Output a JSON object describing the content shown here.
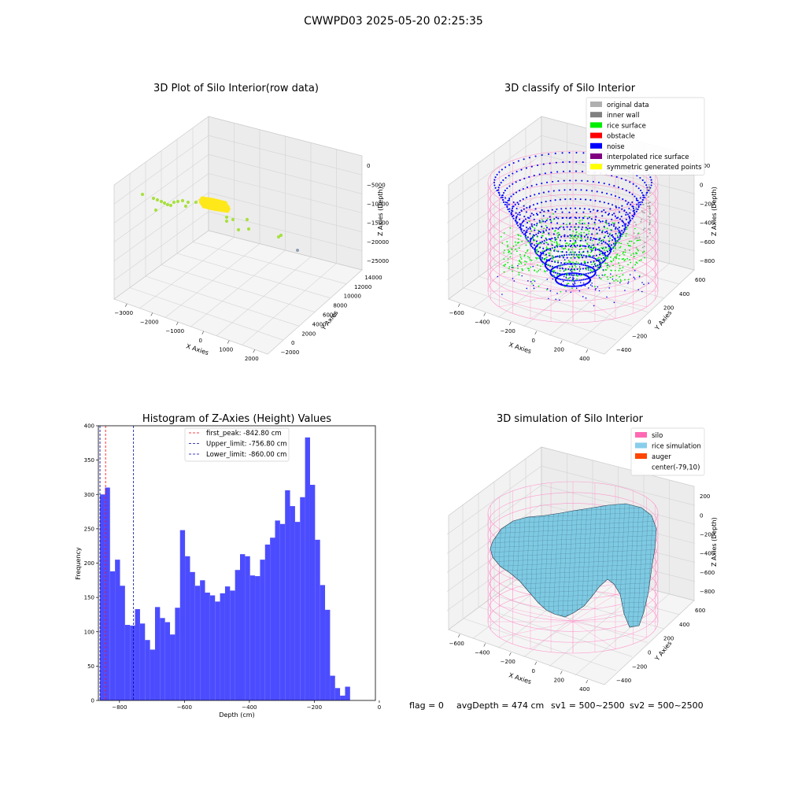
{
  "figure": {
    "title": "CWWPD03 2025-05-20 02:25:35",
    "footer": {
      "flag": "flag = 0",
      "avg": "avgDepth = 474 cm",
      "sv1": "sv1 = 500~2500",
      "sv2": "sv2 = 500~2500"
    }
  },
  "colors": {
    "hist_bar": "#4c4cff",
    "rice_point": "#a8e040",
    "symmetric_point": "#ffe81a",
    "raw_outlier": "#8fa0b0",
    "silo_wire": "#ff80c0",
    "rice_sim": "#7ecae3",
    "noise": "#0000ff",
    "rice_surface": "#00ee00",
    "first_peak_line": "#ff0000",
    "limit_line": "#0000aa"
  },
  "chart_data": [
    {
      "type": "scatter",
      "title": "3D Plot of Silo Interior(row data)",
      "xlabel": "X Axies",
      "ylabel": "Y Axies",
      "zlabel": "Z Axies (Depth)",
      "x_ticks": [
        "−3000",
        "−2000",
        "−1000",
        "0",
        "1000",
        "2000"
      ],
      "y_ticks": [
        "−2000",
        "0",
        "2000",
        "4000",
        "6000",
        "8000",
        "10000",
        "12000",
        "14000"
      ],
      "z_ticks": [
        "0",
        "−5000",
        "−10000",
        "−15000",
        "−20000",
        "−25000"
      ]
    },
    {
      "type": "scatter",
      "title": "3D classify of Silo Interior",
      "xlabel": "X Axies",
      "ylabel": "Y Axies",
      "zlabel": "Z Axies (Depth)",
      "x_ticks": [
        "−600",
        "−400",
        "−200",
        "0",
        "200",
        "400"
      ],
      "y_ticks": [
        "−400",
        "−200",
        "0",
        "200",
        "400",
        "600"
      ],
      "z_ticks": [
        "200",
        "0",
        "−200",
        "−400",
        "−600",
        "−800"
      ],
      "legend": [
        {
          "name": "original data",
          "color": "#b0b0b0"
        },
        {
          "name": "inner wall",
          "color": "#808080"
        },
        {
          "name": "rice surface",
          "color": "#00ee00"
        },
        {
          "name": "obstacle",
          "color": "#ff0000"
        },
        {
          "name": "noise",
          "color": "#0000ff"
        },
        {
          "name": "interpolated rice surface",
          "color": "#800080"
        },
        {
          "name": "symmetric generated points",
          "color": "#ffff00"
        }
      ]
    },
    {
      "type": "bar",
      "title": "Histogram of Z-Axies (Height) Values",
      "xlabel": "Depth (cm)",
      "ylabel": "Frequency",
      "xlim": [
        -865,
        -12
      ],
      "ylim": [
        0,
        400
      ],
      "bin_width": 15.4,
      "bin_start": -860,
      "values": [
        300,
        310,
        188,
        205,
        167,
        110,
        109,
        133,
        112,
        88,
        74,
        136,
        120,
        114,
        96,
        135,
        248,
        210,
        187,
        167,
        175,
        157,
        153,
        144,
        156,
        166,
        160,
        190,
        213,
        210,
        182,
        181,
        205,
        227,
        237,
        262,
        257,
        306,
        283,
        260,
        296,
        383,
        314,
        234,
        168,
        132,
        36,
        18,
        7,
        20
      ],
      "x_ticks": [
        {
          "value": -800,
          "label": "−800"
        },
        {
          "value": -600,
          "label": "−600"
        },
        {
          "value": -400,
          "label": "−400"
        },
        {
          "value": -200,
          "label": "−200"
        },
        {
          "value": 0,
          "label": "0"
        }
      ],
      "y_ticks": [
        {
          "value": 0,
          "label": "0"
        },
        {
          "value": 50,
          "label": "50"
        },
        {
          "value": 100,
          "label": "100"
        },
        {
          "value": 150,
          "label": "150"
        },
        {
          "value": 200,
          "label": "200"
        },
        {
          "value": 250,
          "label": "250"
        },
        {
          "value": 300,
          "label": "300"
        },
        {
          "value": 350,
          "label": "350"
        },
        {
          "value": 400,
          "label": "400"
        }
      ],
      "vlines": [
        {
          "value": -842.8,
          "color": "#ff0000",
          "label": "first_peak: -842.80 cm"
        },
        {
          "value": -756.8,
          "color": "#0000aa",
          "label": "Upper_limit: -756.80 cm"
        },
        {
          "value": -860.0,
          "color": "#0000aa",
          "label": "Lower_limit: -860.00 cm"
        }
      ]
    },
    {
      "type": "area",
      "title": "3D simulation of Silo Interior",
      "xlabel": "X Axies",
      "ylabel": "Y Axies",
      "zlabel": "Z Axies (Depth)",
      "x_ticks": [
        "−600",
        "−400",
        "−200",
        "0",
        "200",
        "400"
      ],
      "y_ticks": [
        "−400",
        "−200",
        "0",
        "200",
        "400",
        "600"
      ],
      "z_ticks": [
        "200",
        "0",
        "−200",
        "−400",
        "−600",
        "−800"
      ],
      "legend": [
        {
          "name": "silo",
          "color": "#ff69b4"
        },
        {
          "name": "rice simulation",
          "color": "#87ceeb"
        },
        {
          "name": "auger",
          "color": "#ff4500"
        },
        {
          "name": "center(-79,10)",
          "color": ""
        }
      ]
    }
  ]
}
